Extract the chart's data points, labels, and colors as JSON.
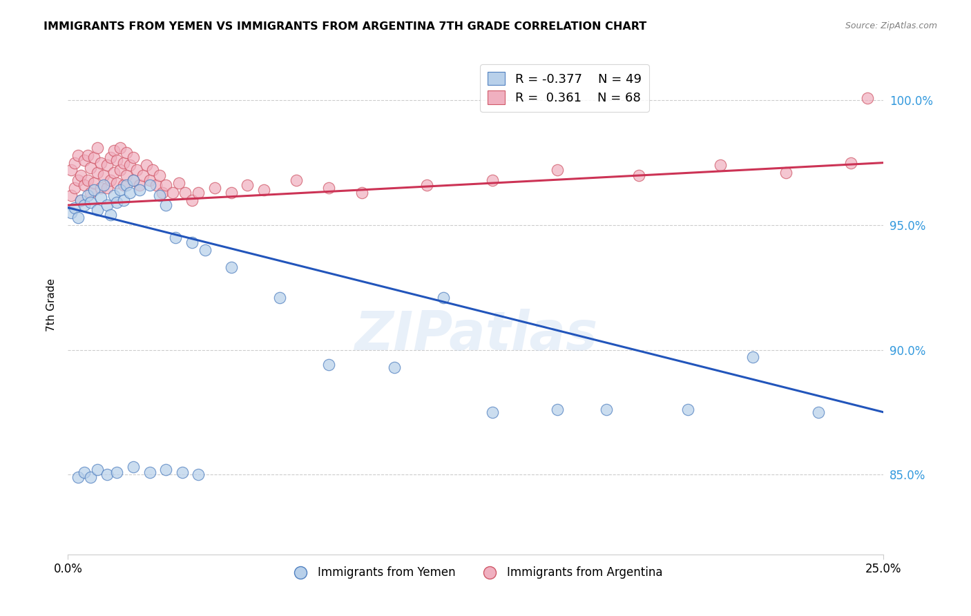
{
  "title": "IMMIGRANTS FROM YEMEN VS IMMIGRANTS FROM ARGENTINA 7TH GRADE CORRELATION CHART",
  "source": "Source: ZipAtlas.com",
  "ylabel": "7th Grade",
  "xlim": [
    0.0,
    0.25
  ],
  "ylim": [
    0.818,
    1.018
  ],
  "yticks": [
    0.85,
    0.9,
    0.95,
    1.0
  ],
  "ytick_labels": [
    "85.0%",
    "90.0%",
    "95.0%",
    "100.0%"
  ],
  "xtick_labels": [
    "0.0%",
    "25.0%"
  ],
  "legend_blue_r": "-0.377",
  "legend_blue_n": "49",
  "legend_pink_r": "0.361",
  "legend_pink_n": "68",
  "blue_face": "#b8d0ea",
  "blue_edge": "#5080c0",
  "pink_face": "#f0b0c0",
  "pink_edge": "#d05868",
  "blue_line": "#2255bb",
  "pink_line": "#cc3355",
  "watermark": "ZIPatlas",
  "yemen_x": [
    0.001,
    0.002,
    0.003,
    0.004,
    0.005,
    0.006,
    0.007,
    0.008,
    0.009,
    0.01,
    0.011,
    0.012,
    0.013,
    0.014,
    0.015,
    0.016,
    0.017,
    0.018,
    0.019,
    0.02,
    0.022,
    0.025,
    0.028,
    0.03,
    0.033,
    0.038,
    0.042,
    0.05,
    0.065,
    0.08,
    0.1,
    0.115,
    0.13,
    0.15,
    0.165,
    0.19,
    0.21,
    0.23,
    0.003,
    0.005,
    0.007,
    0.009,
    0.012,
    0.015,
    0.02,
    0.025,
    0.03,
    0.035,
    0.04
  ],
  "yemen_y": [
    0.955,
    0.957,
    0.953,
    0.96,
    0.958,
    0.962,
    0.959,
    0.964,
    0.956,
    0.961,
    0.966,
    0.958,
    0.954,
    0.962,
    0.959,
    0.964,
    0.96,
    0.966,
    0.963,
    0.968,
    0.964,
    0.966,
    0.962,
    0.958,
    0.945,
    0.943,
    0.94,
    0.933,
    0.921,
    0.894,
    0.893,
    0.921,
    0.875,
    0.876,
    0.876,
    0.876,
    0.897,
    0.875,
    0.849,
    0.851,
    0.849,
    0.852,
    0.85,
    0.851,
    0.853,
    0.851,
    0.852,
    0.851,
    0.85
  ],
  "argentina_x": [
    0.001,
    0.001,
    0.002,
    0.002,
    0.003,
    0.003,
    0.004,
    0.004,
    0.005,
    0.005,
    0.006,
    0.006,
    0.007,
    0.007,
    0.008,
    0.008,
    0.009,
    0.009,
    0.01,
    0.01,
    0.011,
    0.012,
    0.012,
    0.013,
    0.013,
    0.014,
    0.014,
    0.015,
    0.015,
    0.016,
    0.016,
    0.017,
    0.017,
    0.018,
    0.018,
    0.019,
    0.02,
    0.02,
    0.021,
    0.022,
    0.023,
    0.024,
    0.025,
    0.026,
    0.027,
    0.028,
    0.029,
    0.03,
    0.032,
    0.034,
    0.036,
    0.038,
    0.04,
    0.045,
    0.05,
    0.055,
    0.06,
    0.07,
    0.08,
    0.09,
    0.11,
    0.13,
    0.15,
    0.175,
    0.2,
    0.22,
    0.24,
    0.245
  ],
  "argentina_y": [
    0.962,
    0.972,
    0.965,
    0.975,
    0.968,
    0.978,
    0.96,
    0.97,
    0.966,
    0.976,
    0.968,
    0.978,
    0.963,
    0.973,
    0.967,
    0.977,
    0.971,
    0.981,
    0.965,
    0.975,
    0.97,
    0.965,
    0.974,
    0.968,
    0.977,
    0.971,
    0.98,
    0.967,
    0.976,
    0.972,
    0.981,
    0.966,
    0.975,
    0.97,
    0.979,
    0.974,
    0.968,
    0.977,
    0.972,
    0.966,
    0.97,
    0.974,
    0.968,
    0.972,
    0.966,
    0.97,
    0.963,
    0.966,
    0.963,
    0.967,
    0.963,
    0.96,
    0.963,
    0.965,
    0.963,
    0.966,
    0.964,
    0.968,
    0.965,
    0.963,
    0.966,
    0.968,
    0.972,
    0.97,
    0.974,
    0.971,
    0.975,
    1.001
  ]
}
